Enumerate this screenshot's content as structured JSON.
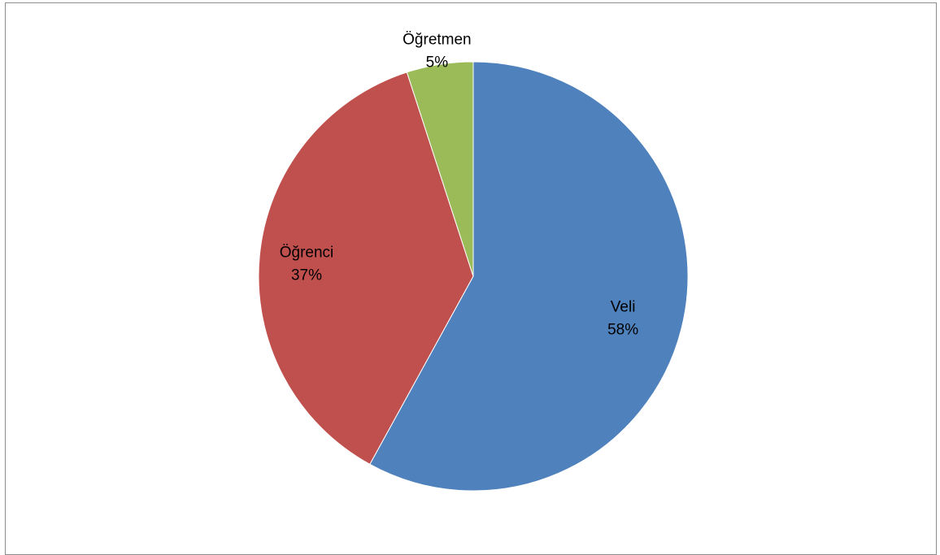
{
  "chart_data": {
    "type": "pie",
    "categories": [
      "Veli",
      "Öğrenci",
      "Öğretmen"
    ],
    "values": [
      58,
      37,
      5
    ],
    "value_labels": [
      "58%",
      "37%",
      "5%"
    ],
    "colors": [
      "#4f81bd",
      "#c0504d",
      "#9bbb59"
    ],
    "start_angle_deg": 0,
    "direction": "clockwise",
    "legend": "none"
  }
}
